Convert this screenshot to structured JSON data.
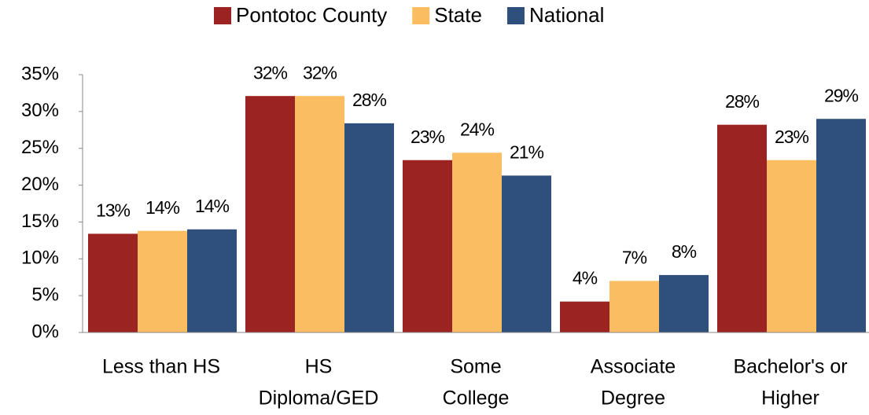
{
  "chart_data": {
    "type": "bar",
    "categories": [
      [
        "Less than HS"
      ],
      [
        "HS",
        "Diploma/GED"
      ],
      [
        "Some",
        "College"
      ],
      [
        "Associate",
        "Degree"
      ],
      [
        "Bachelor's or",
        "Higher"
      ]
    ],
    "series": [
      {
        "name": "Pontotoc County",
        "color": "#9b2423",
        "values": [
          13.4,
          32.1,
          23.4,
          4.2,
          28.2
        ],
        "value_labels": [
          "13%",
          "32%",
          "23%",
          "4%",
          "28%"
        ]
      },
      {
        "name": "State",
        "color": "#fbbd62",
        "values": [
          13.8,
          32.1,
          24.4,
          7.0,
          23.4
        ],
        "value_labels": [
          "14%",
          "32%",
          "24%",
          "7%",
          "23%"
        ]
      },
      {
        "name": "National",
        "color": "#2f4f7d",
        "values": [
          14.0,
          28.4,
          21.3,
          7.8,
          29.0
        ],
        "value_labels": [
          "14%",
          "28%",
          "21%",
          "8%",
          "29%"
        ]
      }
    ],
    "ylim": [
      0,
      35
    ],
    "yticks": [
      {
        "value": 0,
        "label": "0%"
      },
      {
        "value": 5,
        "label": "5%"
      },
      {
        "value": 10,
        "label": "10%"
      },
      {
        "value": 15,
        "label": "15%"
      },
      {
        "value": 20,
        "label": "20%"
      },
      {
        "value": 25,
        "label": "25%"
      },
      {
        "value": 30,
        "label": "30%"
      },
      {
        "value": 35,
        "label": "35%"
      }
    ],
    "legend": "top"
  }
}
